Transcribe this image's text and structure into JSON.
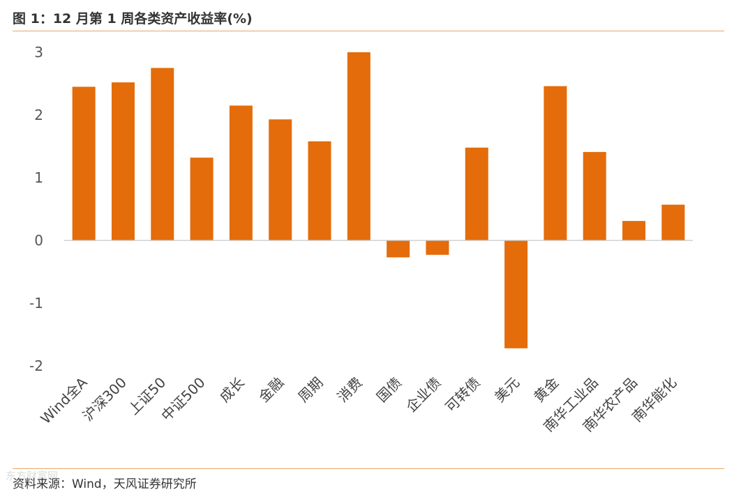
{
  "figure": {
    "title": "图 1：12 月第 1 周各类资产收益率(%)",
    "source": "资料来源：Wind，天风证券研究所",
    "watermark": "东方财富网",
    "bar_color": "#E46C0A",
    "rule_color": "#E8A56A"
  },
  "chart_data": {
    "type": "bar",
    "title": "",
    "xlabel": "",
    "ylabel": "",
    "categories": [
      "Wind全A",
      "沪深300",
      "上证50",
      "中证500",
      "成长",
      "金融",
      "周期",
      "消费",
      "国债",
      "企业债",
      "可转债",
      "美元",
      "黄金",
      "南华工业品",
      "南华农产品",
      "南华能化"
    ],
    "values": [
      2.45,
      2.52,
      2.75,
      1.32,
      2.15,
      1.93,
      1.58,
      3.0,
      -0.27,
      -0.23,
      1.48,
      -1.72,
      2.46,
      1.41,
      0.31,
      0.57
    ],
    "ylim": [
      -2,
      3
    ],
    "yticks": [
      3,
      2,
      1,
      0,
      -1,
      -2
    ],
    "grid": false,
    "legend": "none"
  }
}
